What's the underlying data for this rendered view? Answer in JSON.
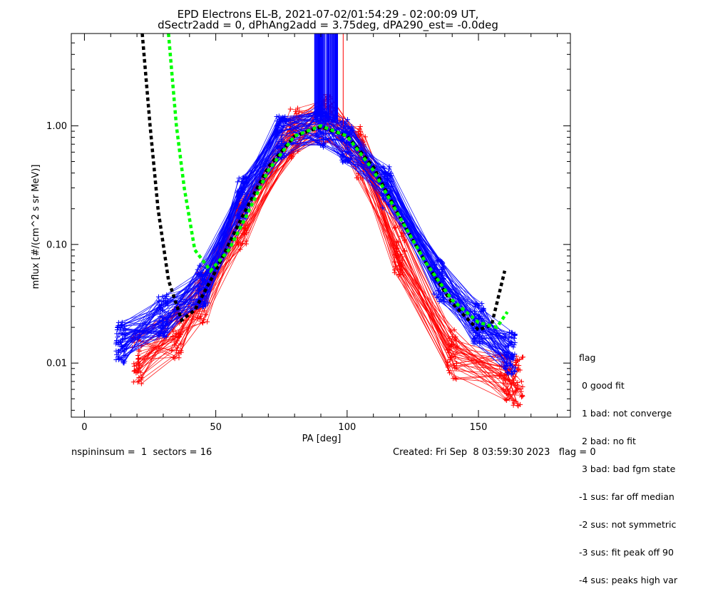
{
  "title": {
    "line1": "EPD Electrons EL-B, 2021-07-02/01:54:29 - 02:00:09 UT,",
    "line2": "dSectr2add = 0, dPhAng2add = 3.75deg, dPA290_est=  -0.0deg"
  },
  "legend": {
    "heading": "flag",
    "items": [
      " 0 good fit",
      " 1 bad: not converge",
      " 2 bad: no fit",
      " 3 bad: bad fgm state",
      "-1 sus: far off median",
      "-2 sus: not symmetric",
      "-3 sus: fit peak off 90",
      "-4 sus: peaks high var"
    ]
  },
  "footer": {
    "left": "nspininsum =  1  sectors = 16",
    "right": "Created: Fri Sep  8 03:59:30 2023   flag = 0"
  },
  "colors": {
    "red": "#ff0000",
    "blue": "#0000ff",
    "black_fit": "#000000",
    "green_fit": "#00ff00"
  },
  "chart_data": {
    "type": "line",
    "xlabel": "PA [deg]",
    "ylabel": "mflux [#/(cm^2 s sr MeV)]",
    "xlim": [
      -5,
      185
    ],
    "ylim": [
      0.0035,
      6.0
    ],
    "yscale": "log",
    "x_ticks": [
      0,
      50,
      100,
      150
    ],
    "x_tick_labels": [
      "0",
      "50",
      "100",
      "150"
    ],
    "y_ticks": [
      0.01,
      0.1,
      1.0
    ],
    "y_tick_labels": [
      "0.01",
      "0.10",
      "1.00"
    ],
    "grid": false,
    "series": [
      {
        "color": "#ff0000",
        "marker": "+",
        "values": [
          [
            20,
            0.011
          ],
          [
            35,
            0.018
          ],
          [
            45,
            0.035
          ],
          [
            60,
            0.15
          ],
          [
            80,
            0.85
          ],
          [
            92,
            1.15
          ],
          [
            105,
            0.6
          ],
          [
            120,
            0.09
          ],
          [
            140,
            0.012
          ],
          [
            160,
            0.008
          ],
          [
            165,
            0.007
          ]
        ]
      },
      {
        "color": "#0000ff",
        "marker": "+",
        "values": [
          [
            14,
            0.015
          ],
          [
            30,
            0.025
          ],
          [
            45,
            0.045
          ],
          [
            60,
            0.25
          ],
          [
            75,
            0.8
          ],
          [
            90,
            0.98
          ],
          [
            100,
            0.75
          ],
          [
            115,
            0.3
          ],
          [
            135,
            0.05
          ],
          [
            150,
            0.022
          ],
          [
            162,
            0.012
          ]
        ]
      },
      {
        "color": "#000000",
        "style": "dashed",
        "values": [
          [
            22,
            6.0
          ],
          [
            25,
            1.0
          ],
          [
            28,
            0.2
          ],
          [
            32,
            0.05
          ],
          [
            37,
            0.023
          ],
          [
            42,
            0.028
          ],
          [
            50,
            0.06
          ],
          [
            60,
            0.17
          ],
          [
            70,
            0.45
          ],
          [
            80,
            0.82
          ],
          [
            90,
            0.98
          ],
          [
            100,
            0.82
          ],
          [
            110,
            0.45
          ],
          [
            120,
            0.17
          ],
          [
            130,
            0.07
          ],
          [
            140,
            0.032
          ],
          [
            150,
            0.019
          ],
          [
            155,
            0.021
          ],
          [
            160,
            0.06
          ]
        ]
      },
      {
        "color": "#00ff00",
        "style": "dashed",
        "values": [
          [
            32,
            6.0
          ],
          [
            35,
            1.0
          ],
          [
            38,
            0.3
          ],
          [
            42,
            0.09
          ],
          [
            48,
            0.06
          ],
          [
            55,
            0.09
          ],
          [
            62,
            0.18
          ],
          [
            70,
            0.42
          ],
          [
            80,
            0.82
          ],
          [
            90,
            1.0
          ],
          [
            100,
            0.82
          ],
          [
            110,
            0.42
          ],
          [
            120,
            0.17
          ],
          [
            130,
            0.07
          ],
          [
            140,
            0.034
          ],
          [
            150,
            0.022
          ],
          [
            157,
            0.02
          ],
          [
            161,
            0.027
          ]
        ]
      }
    ]
  }
}
